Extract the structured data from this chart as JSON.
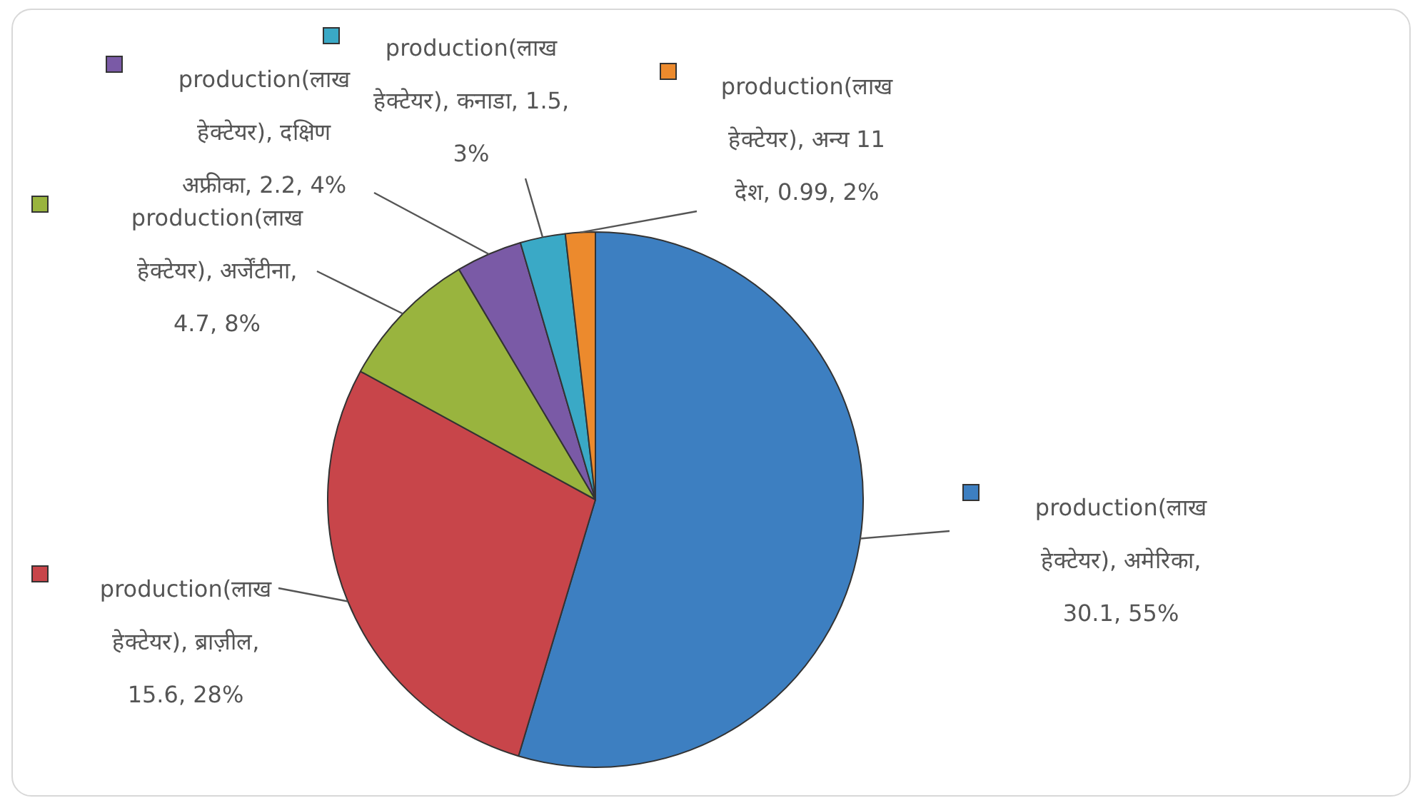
{
  "chart_data": {
    "type": "pie",
    "categories": [
      null,
      null,
      null,
      null,
      null,
      null
    ],
    "values": [
      30.1,
      15.6,
      4.7,
      2.2,
      1.5,
      0.99
    ],
    "value_labels": [
      "production(लाख हेक्टेयर), अमेरिका, 30.1, 55%",
      "production(लाख हेक्टेयर), ब्राज़ील, 15.6, 28%",
      "production(लाख हेक्टेयर), अर्जेंटीना, 4.7, 8%",
      "production(लाख हेक्टेयर), दक्षिण अफ्रीका, 2.2, 4%",
      "production(लाख हेक्टेयर), कनाडा, 1.5, 3%",
      "production(लाख हेक्टेयर), अन्य 11 देश, 0.99, 2%"
    ],
    "colors": [
      "#3d7fc1",
      "#c8454a",
      "#99b43e",
      "#7a5aa6",
      "#3aa9c6",
      "#ec8a2d"
    ]
  }
}
